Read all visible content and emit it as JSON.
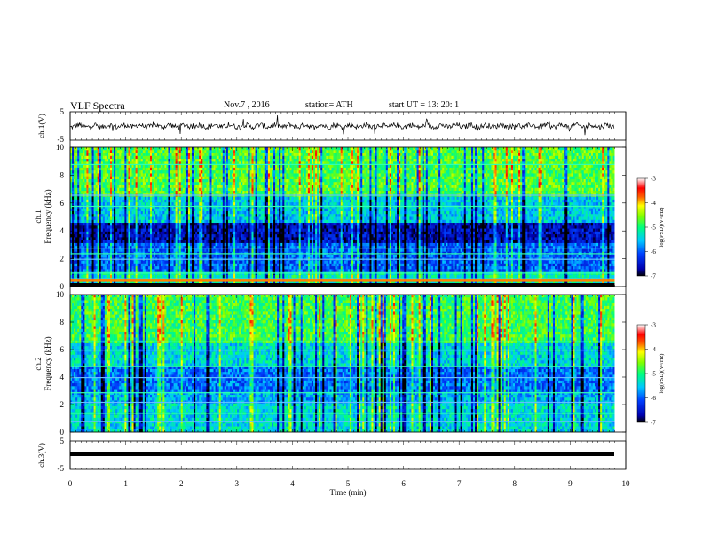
{
  "header": {
    "title": "VLF  Spectra",
    "date": "Nov.7   , 2016",
    "station": "station= ATH",
    "start": "start  UT  =    13: 20: 1"
  },
  "chart_data": [
    {
      "type": "line",
      "ylabel": "ch.1(V)",
      "ylim": [
        -5,
        5
      ],
      "yticks": [
        -5,
        5
      ],
      "xlim": [
        0,
        10
      ],
      "description_visible": "waveform"
    },
    {
      "type": "heatmap",
      "ylabel": "ch.1\nFrequency  (kHz)",
      "ylabel_line1": "ch.1",
      "ylabel_line2": "Frequency  (kHz)",
      "ylim": [
        0,
        10
      ],
      "yticks": [
        0,
        2,
        4,
        6,
        8,
        10
      ],
      "xlim": [
        0,
        10
      ],
      "colorbar": {
        "label": "log(PSD)(V²/Hz)",
        "range": [
          -7,
          -3
        ],
        "ticks": [
          -3,
          -4,
          -5,
          -6,
          -7
        ]
      }
    },
    {
      "type": "heatmap",
      "ylabel_line1": "ch.2",
      "ylabel_line2": "Frequency  (kHz)",
      "ylim": [
        0,
        10
      ],
      "yticks": [
        0,
        2,
        4,
        6,
        8,
        10
      ],
      "xlim": [
        0,
        10
      ],
      "colorbar": {
        "label": "log(PSD)(V²/Hz)",
        "range": [
          -7,
          -3
        ],
        "ticks": [
          -3,
          -4,
          -5,
          -6,
          -7
        ]
      }
    },
    {
      "type": "line",
      "ylabel": "ch.3(V)",
      "ylim": [
        -5,
        5
      ],
      "yticks": [
        -5,
        5
      ],
      "xlim": [
        0,
        10
      ]
    }
  ],
  "xaxis": {
    "label": "Time  (min)",
    "ticks": [
      "0",
      "1",
      "2",
      "3",
      "4",
      "5",
      "6",
      "7",
      "8",
      "9",
      "10"
    ],
    "data_end": 9.8
  },
  "labels": {
    "ch1_wave": "ch.1(V)",
    "ch3_wave": "ch.3(V)",
    "w_top": "5",
    "w_bot": "-5",
    "cb_label": "log(PSD)(V²/Hz)"
  }
}
